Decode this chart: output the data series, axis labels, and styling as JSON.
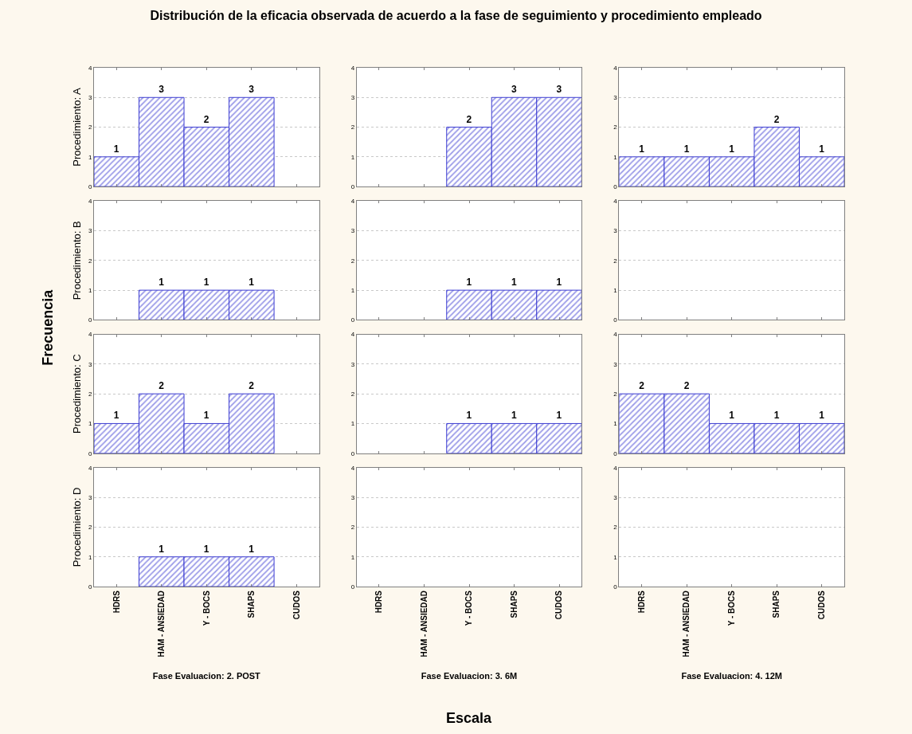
{
  "chart_data": [
    {
      "type": "bar",
      "title": "Distribución de la eficacia observada de acuerdo a la fase de seguimiento y procedimiento empleado",
      "annotations": [
        "Frecuencia",
        "Escala"
      ],
      "ylabel": "Procedimiento: A",
      "categories": [
        "HDRS",
        "HAM - ANSIEDAD",
        "Y - BOCS",
        "SHAPS",
        "CUDOS"
      ],
      "values": [
        1,
        3,
        2,
        3,
        null
      ],
      "color": "#3c3cd2",
      "ylim": [
        0,
        4
      ],
      "yticks": [
        0,
        1,
        2,
        3,
        4
      ],
      "grid": "y",
      "data_labels": true,
      "tick_labels": "y"
    },
    {
      "type": "bar",
      "categories": [
        "HDRS",
        "HAM - ANSIEDAD",
        "Y - BOCS",
        "SHAPS",
        "CUDOS"
      ],
      "values": [
        null,
        null,
        2,
        3,
        3
      ],
      "color": "#3c3cd2",
      "ylim": [
        0,
        4
      ],
      "yticks": [
        0,
        1,
        2,
        3,
        4
      ],
      "grid": "y",
      "data_labels": true,
      "tick_labels": "y"
    },
    {
      "type": "bar",
      "categories": [
        "HDRS",
        "HAM - ANSIEDAD",
        "Y - BOCS",
        "SHAPS",
        "CUDOS"
      ],
      "values": [
        1,
        1,
        1,
        2,
        1
      ],
      "color": "#3c3cd2",
      "ylim": [
        0,
        4
      ],
      "yticks": [
        0,
        1,
        2,
        3,
        4
      ],
      "grid": "y",
      "data_labels": true,
      "tick_labels": "y"
    },
    {
      "type": "bar",
      "ylabel": "Procedimiento: B",
      "categories": [
        "HDRS",
        "HAM - ANSIEDAD",
        "Y - BOCS",
        "SHAPS",
        "CUDOS"
      ],
      "values": [
        null,
        1,
        1,
        1,
        null
      ],
      "color": "#3c3cd2",
      "ylim": [
        0,
        4
      ],
      "yticks": [
        0,
        1,
        2,
        3,
        4
      ],
      "grid": "y",
      "data_labels": true,
      "tick_labels": "y"
    },
    {
      "type": "bar",
      "categories": [
        "HDRS",
        "HAM - ANSIEDAD",
        "Y - BOCS",
        "SHAPS",
        "CUDOS"
      ],
      "values": [
        null,
        null,
        1,
        1,
        1
      ],
      "color": "#3c3cd2",
      "ylim": [
        0,
        4
      ],
      "yticks": [
        0,
        1,
        2,
        3,
        4
      ],
      "grid": "y",
      "data_labels": true,
      "tick_labels": "y"
    },
    {
      "type": "bar",
      "categories": [
        "HDRS",
        "HAM - ANSIEDAD",
        "Y - BOCS",
        "SHAPS",
        "CUDOS"
      ],
      "values": [
        null,
        null,
        null,
        null,
        null
      ],
      "color": "#3c3cd2",
      "ylim": [
        0,
        4
      ],
      "yticks": [
        0,
        1,
        2,
        3,
        4
      ],
      "grid": "y",
      "data_labels": true,
      "tick_labels": "y"
    },
    {
      "type": "bar",
      "ylabel": "Procedimiento: C",
      "categories": [
        "HDRS",
        "HAM - ANSIEDAD",
        "Y - BOCS",
        "SHAPS",
        "CUDOS"
      ],
      "values": [
        1,
        2,
        1,
        2,
        null
      ],
      "color": "#3c3cd2",
      "ylim": [
        0,
        4
      ],
      "yticks": [
        0,
        1,
        2,
        3,
        4
      ],
      "grid": "y",
      "data_labels": true,
      "tick_labels": "y"
    },
    {
      "type": "bar",
      "categories": [
        "HDRS",
        "HAM - ANSIEDAD",
        "Y - BOCS",
        "SHAPS",
        "CUDOS"
      ],
      "values": [
        null,
        null,
        1,
        1,
        1
      ],
      "color": "#3c3cd2",
      "ylim": [
        0,
        4
      ],
      "yticks": [
        0,
        1,
        2,
        3,
        4
      ],
      "grid": "y",
      "data_labels": true,
      "tick_labels": "y"
    },
    {
      "type": "bar",
      "categories": [
        "HDRS",
        "HAM - ANSIEDAD",
        "Y - BOCS",
        "SHAPS",
        "CUDOS"
      ],
      "values": [
        2,
        2,
        1,
        1,
        1
      ],
      "color": "#3c3cd2",
      "ylim": [
        0,
        4
      ],
      "yticks": [
        0,
        1,
        2,
        3,
        4
      ],
      "grid": "y",
      "data_labels": true,
      "tick_labels": "y"
    },
    {
      "type": "bar",
      "ylabel": "Procedimiento: D",
      "xlabel": "Fase Evaluacion: 2. POST",
      "categories": [
        "HDRS",
        "HAM - ANSIEDAD",
        "Y - BOCS",
        "SHAPS",
        "CUDOS"
      ],
      "values": [
        null,
        1,
        1,
        1,
        null
      ],
      "color": "#3c3cd2",
      "ylim": [
        0,
        4
      ],
      "yticks": [
        0,
        1,
        2,
        3,
        4
      ],
      "grid": "y",
      "data_labels": true
    },
    {
      "type": "bar",
      "xlabel": "Fase Evaluacion: 3. 6M",
      "categories": [
        "HDRS",
        "HAM - ANSIEDAD",
        "Y - BOCS",
        "SHAPS",
        "CUDOS"
      ],
      "values": [
        null,
        null,
        null,
        null,
        null
      ],
      "color": "#3c3cd2",
      "ylim": [
        0,
        4
      ],
      "yticks": [
        0,
        1,
        2,
        3,
        4
      ],
      "grid": "y",
      "data_labels": true
    },
    {
      "type": "bar",
      "xlabel": "Fase Evaluacion: 4. 12M",
      "categories": [
        "HDRS",
        "HAM - ANSIEDAD",
        "Y - BOCS",
        "SHAPS",
        "CUDOS"
      ],
      "values": [
        null,
        null,
        null,
        null,
        null
      ],
      "color": "#3c3cd2",
      "ylim": [
        0,
        4
      ],
      "yticks": [
        0,
        1,
        2,
        3,
        4
      ],
      "grid": "y",
      "data_labels": true
    }
  ]
}
